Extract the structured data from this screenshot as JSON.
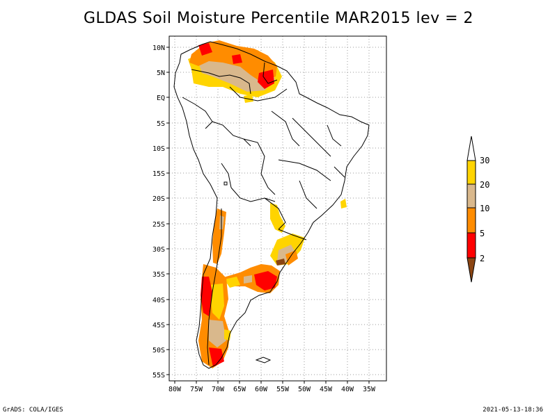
{
  "title": "GLDAS Soil Moisture Percentile MAR2015 lev = 2",
  "footer": {
    "left": "GrADS: COLA/IGES",
    "right": "2021-05-13-18:36"
  },
  "axes": {
    "lon_labels": [
      "80W",
      "75W",
      "70W",
      "65W",
      "60W",
      "55W",
      "50W",
      "45W",
      "40W",
      "35W"
    ],
    "lat_labels": [
      "10N",
      "5N",
      "EQ",
      "5S",
      "10S",
      "15S",
      "20S",
      "25S",
      "30S",
      "35S",
      "40S",
      "45S",
      "50S",
      "55S"
    ],
    "lon_range": [
      -81,
      -33
    ],
    "lat_range": [
      -56,
      12
    ]
  },
  "colorbar": {
    "labels": [
      "30",
      "20",
      "10",
      "5",
      "2"
    ],
    "colors": {
      "above_30": "#ffffff",
      "20_30": "#ffd400",
      "10_20": "#d9b88c",
      "5_10": "#ff8c00",
      "2_5": "#ff0000",
      "below_2": "#8b4513"
    }
  },
  "colors": {
    "coast": "#000000",
    "grid": "#9a9a9a"
  }
}
